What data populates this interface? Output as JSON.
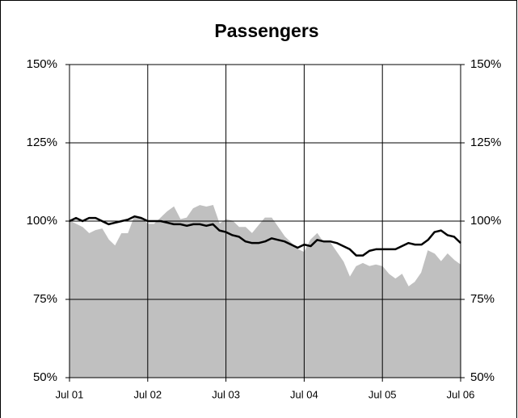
{
  "chart_data": {
    "type": "line",
    "title": "Passengers",
    "categories": [
      "Jul 01",
      null,
      null,
      null,
      null,
      null,
      null,
      null,
      null,
      null,
      null,
      null,
      "Jul 02",
      null,
      null,
      null,
      null,
      null,
      null,
      null,
      null,
      null,
      null,
      null,
      "Jul 03",
      null,
      null,
      null,
      null,
      null,
      null,
      null,
      null,
      null,
      null,
      null,
      "Jul 04",
      null,
      null,
      null,
      null,
      null,
      null,
      null,
      null,
      null,
      null,
      null,
      "Jul 05",
      null,
      null,
      null,
      null,
      null,
      null,
      null,
      null,
      null,
      null,
      null,
      "Jul 06"
    ],
    "series": [
      {
        "type": "area",
        "color": "#c0c0c0",
        "values": [
          100,
          99,
          98,
          96,
          97,
          97.5,
          94,
          92,
          96,
          96,
          101.5,
          101,
          99,
          99,
          101,
          103,
          104.5,
          100.5,
          101,
          104,
          105,
          104.5,
          105,
          99,
          100.5,
          100,
          98,
          98,
          96,
          98.5,
          101,
          101,
          98,
          95,
          93,
          91,
          90,
          94,
          96,
          93,
          93,
          90,
          87,
          82,
          85.5,
          86.5,
          85.5,
          86,
          85.5,
          83,
          81.5,
          83,
          79,
          80.5,
          83.5,
          90.5,
          89.5,
          87,
          89.5,
          87.5,
          86
        ]
      },
      {
        "type": "line",
        "color": "#000000",
        "values": [
          100,
          101,
          100,
          101,
          101,
          100,
          99,
          99.5,
          100,
          100.5,
          101.5,
          101,
          100,
          100,
          100,
          99.5,
          99,
          99,
          98.5,
          99,
          99,
          98.5,
          99,
          97,
          96.5,
          95.5,
          95,
          93.5,
          93,
          93,
          93.5,
          94.5,
          94,
          93.5,
          92.5,
          91.5,
          92.5,
          92,
          94,
          93.5,
          93.5,
          93,
          92,
          91,
          89,
          89,
          90.5,
          91,
          91,
          91,
          91,
          92,
          93,
          92.5,
          92.5,
          94,
          96.5,
          97,
          95.5,
          95,
          93
        ]
      }
    ],
    "ylim": [
      50,
      150
    ],
    "yticks": [
      {
        "value": 50,
        "label": "50%"
      },
      {
        "value": 75,
        "label": "75%"
      },
      {
        "value": 100,
        "label": "100%"
      },
      {
        "value": 125,
        "label": "125%"
      },
      {
        "value": 150,
        "label": "150%"
      }
    ],
    "y2lim": [
      50,
      150
    ],
    "y2ticks": [
      {
        "value": 50,
        "label": "50%"
      },
      {
        "value": 75,
        "label": "75%"
      },
      {
        "value": 100,
        "label": "100%"
      },
      {
        "value": 125,
        "label": "125%"
      },
      {
        "value": 150,
        "label": "150%"
      }
    ],
    "grid": true
  }
}
